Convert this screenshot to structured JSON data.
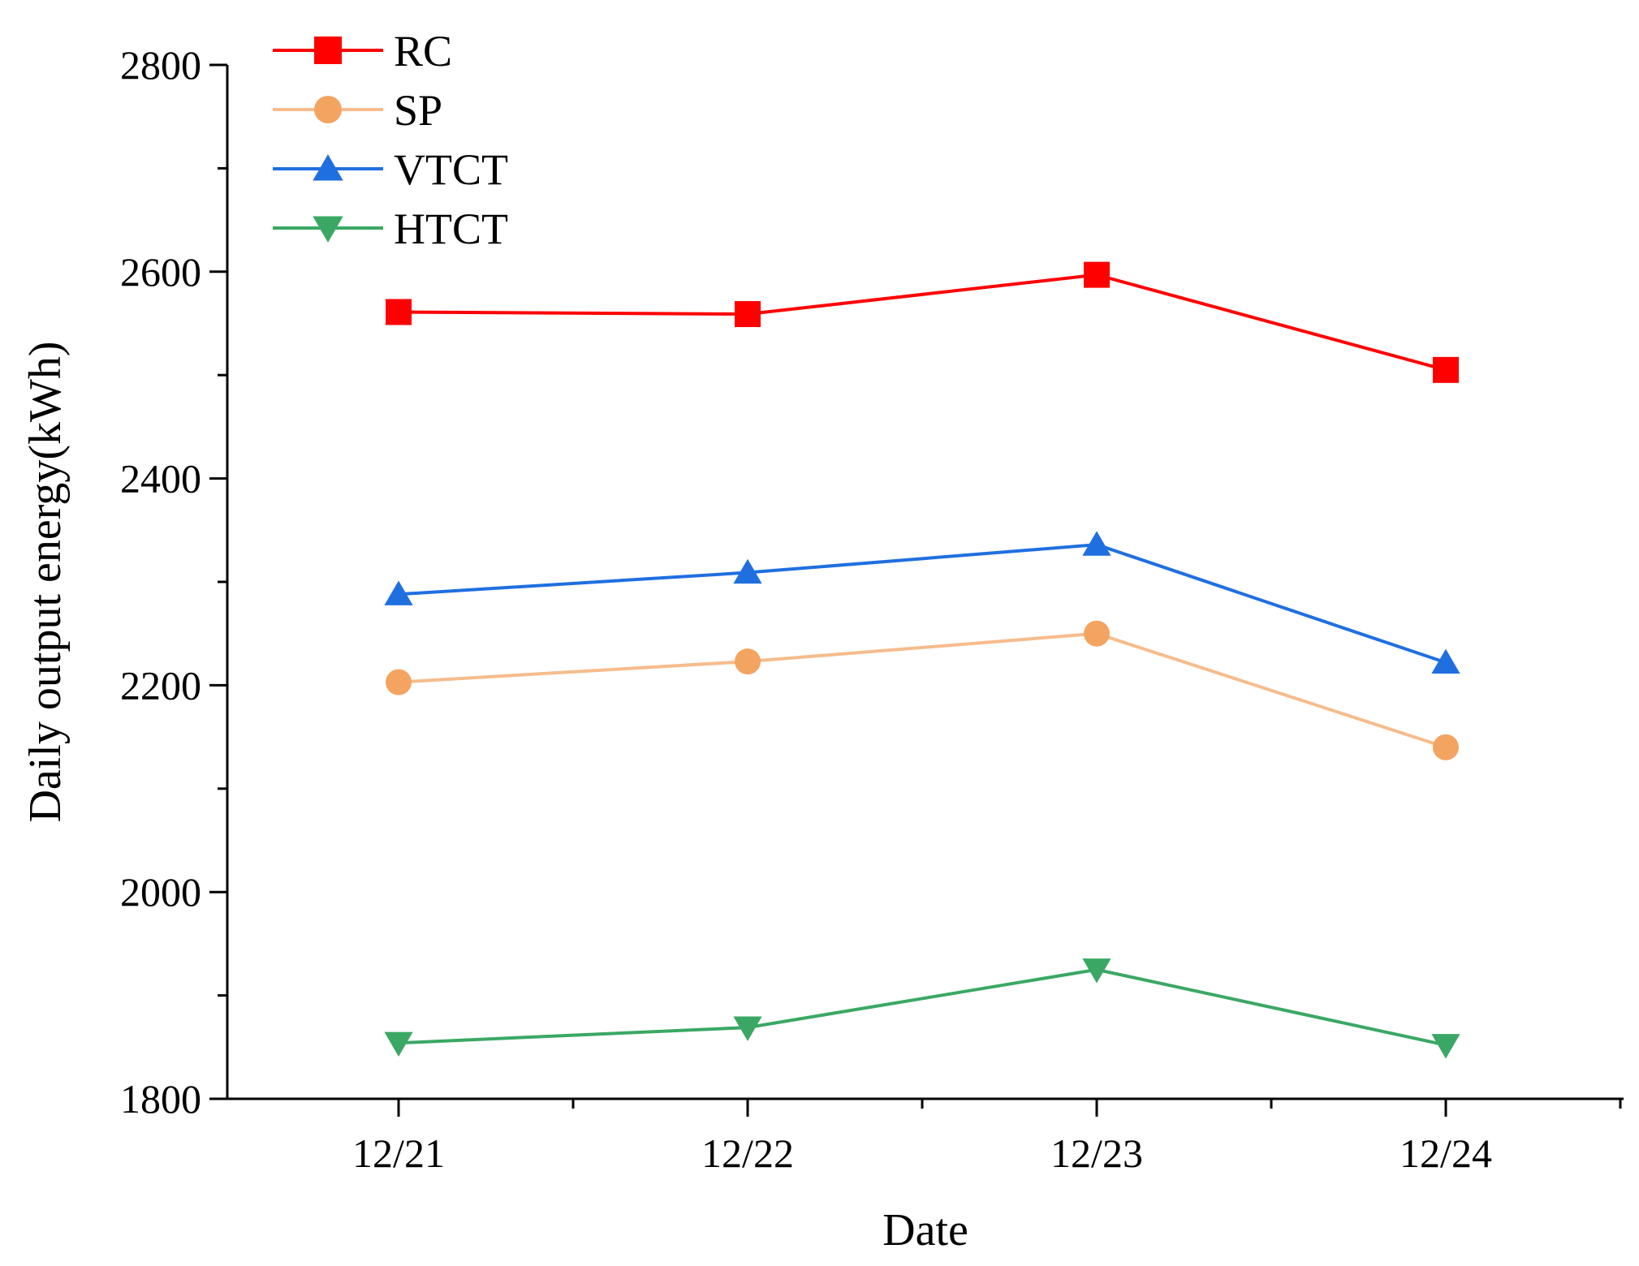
{
  "chart_data": {
    "type": "line",
    "title": "",
    "xlabel": "Date",
    "ylabel": "Daily output energy(kWh)",
    "categories": [
      "12/21",
      "12/22",
      "12/23",
      "12/24"
    ],
    "ylim": [
      1800,
      2800
    ],
    "yticks": [
      1800,
      2000,
      2200,
      2400,
      2600,
      2800
    ],
    "grid": false,
    "legend_position": "top-left",
    "series": [
      {
        "name": "RC",
        "color": "#ff0000",
        "marker": "square",
        "values": [
          2561,
          2559,
          2597,
          2505
        ]
      },
      {
        "name": "SP",
        "color": "#f4a461",
        "line_color": "#f6bc8c",
        "marker": "circle",
        "values": [
          2203,
          2223,
          2250,
          2140
        ]
      },
      {
        "name": "VTCT",
        "color": "#1f6fe0",
        "marker": "triangle-up",
        "values": [
          2288,
          2309,
          2336,
          2222
        ]
      },
      {
        "name": "HTCT",
        "color": "#3aa864",
        "marker": "triangle-down",
        "values": [
          1854,
          1869,
          1925,
          1852
        ]
      }
    ]
  }
}
